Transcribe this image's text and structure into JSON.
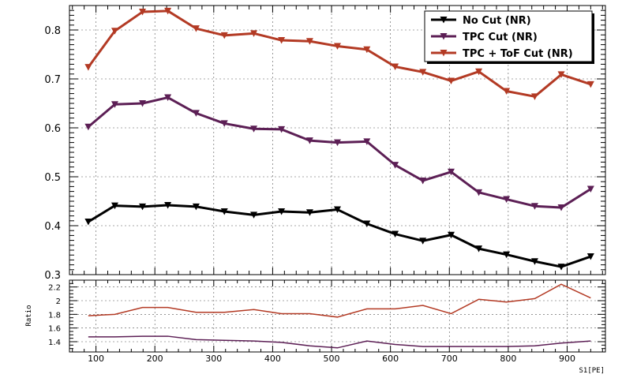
{
  "chart_data": [
    {
      "type": "line",
      "title": "",
      "xlabel": "",
      "ylabel": "",
      "xlim": [
        55,
        965
      ],
      "ylim": [
        0.3,
        0.85
      ],
      "grid": true,
      "legend_position": "top-right",
      "y_ticks": [
        "0.3",
        "0.4",
        "0.5",
        "0.6",
        "0.7",
        "0.8"
      ],
      "x": [
        87,
        132,
        179,
        222,
        270,
        318,
        368,
        415,
        463,
        510,
        560,
        608,
        655,
        703,
        750,
        797,
        845,
        890,
        940
      ],
      "series": [
        {
          "name": "No Cut (NR)",
          "color": "#000000",
          "values": [
            0.408,
            0.441,
            0.439,
            0.442,
            0.439,
            0.429,
            0.422,
            0.429,
            0.427,
            0.433,
            0.404,
            0.383,
            0.369,
            0.381,
            0.353,
            0.341,
            0.327,
            0.316,
            0.337
          ]
        },
        {
          "name": "TPC Cut (NR)",
          "color": "#5c1f55",
          "values": [
            0.602,
            0.648,
            0.65,
            0.662,
            0.63,
            0.609,
            0.598,
            0.597,
            0.574,
            0.57,
            0.572,
            0.524,
            0.492,
            0.51,
            0.468,
            0.454,
            0.44,
            0.437,
            0.475
          ]
        },
        {
          "name": "TPC + ToF Cut (NR)",
          "color": "#b33a24",
          "values": [
            0.724,
            0.798,
            0.837,
            0.839,
            0.803,
            0.789,
            0.793,
            0.779,
            0.777,
            0.767,
            0.76,
            0.725,
            0.714,
            0.696,
            0.715,
            0.675,
            0.664,
            0.709,
            0.689
          ]
        }
      ]
    },
    {
      "type": "line",
      "title": "",
      "xlabel": "S1[PE]",
      "ylabel": "Ratio",
      "xlim": [
        55,
        965
      ],
      "ylim": [
        1.25,
        2.3
      ],
      "grid": true,
      "x_ticks": [
        "100",
        "200",
        "300",
        "400",
        "500",
        "600",
        "700",
        "800",
        "900"
      ],
      "y_ticks": [
        "1.4",
        "1.6",
        "1.8",
        "2",
        "2.2"
      ],
      "x": [
        87,
        132,
        179,
        222,
        270,
        318,
        368,
        415,
        463,
        510,
        560,
        608,
        655,
        703,
        750,
        797,
        845,
        890,
        940
      ],
      "series": [
        {
          "color": "#b33a24",
          "values": [
            1.78,
            1.8,
            1.9,
            1.9,
            1.83,
            1.83,
            1.87,
            1.81,
            1.81,
            1.76,
            1.88,
            1.88,
            1.93,
            1.81,
            2.02,
            1.98,
            2.03,
            2.24,
            2.04
          ]
        },
        {
          "color": "#5c1f55",
          "values": [
            1.47,
            1.47,
            1.48,
            1.48,
            1.43,
            1.42,
            1.41,
            1.39,
            1.34,
            1.31,
            1.41,
            1.36,
            1.33,
            1.33,
            1.33,
            1.33,
            1.34,
            1.38,
            1.41
          ]
        }
      ]
    }
  ]
}
